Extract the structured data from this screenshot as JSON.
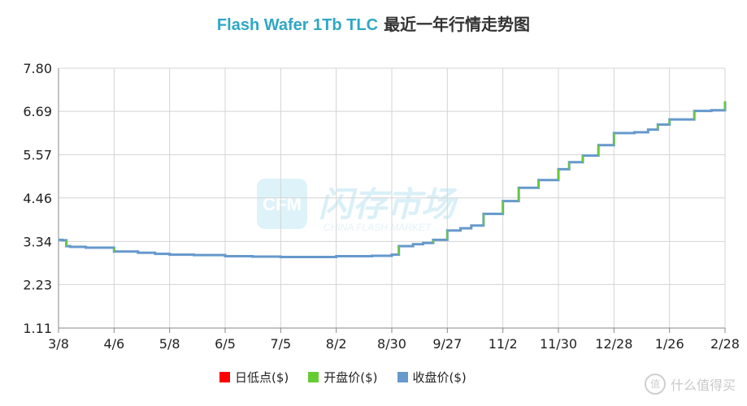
{
  "title": {
    "part1": "Flash Wafer 1Tb TLC",
    "part2": "最近一年行情走势图"
  },
  "watermark": {
    "logo": "CFM",
    "cn": "闪存市场",
    "en": "CHINA FLASH MARKET"
  },
  "brand": {
    "icon": "值",
    "text": "什么值得买"
  },
  "chart_data": {
    "type": "line",
    "title": "Flash Wafer 1Tb TLC 最近一年行情走势图",
    "x_ticks": [
      "3/8",
      "4/6",
      "5/8",
      "6/5",
      "7/5",
      "8/2",
      "8/30",
      "9/27",
      "11/2",
      "11/30",
      "12/28",
      "1/26",
      "2/28"
    ],
    "y_ticks": [
      1.11,
      2.23,
      3.34,
      4.46,
      5.57,
      6.69,
      7.8
    ],
    "ylim": [
      1.11,
      7.8
    ],
    "grid": true,
    "legend_position": "bottom",
    "legend": [
      "日低点($)",
      "开盘价($)",
      "收盘价($)"
    ],
    "colors": {
      "low": "#ff0000",
      "open": "#66cc33",
      "close": "#6699cc"
    },
    "series": [
      {
        "name": "收盘价($)",
        "x": [
          "3/8",
          "3/10",
          "3/12",
          "3/14",
          "3/22",
          "4/6",
          "4/20",
          "4/30",
          "5/8",
          "5/20",
          "6/5",
          "6/20",
          "7/5",
          "7/20",
          "8/2",
          "8/20",
          "8/30",
          "9/3",
          "9/10",
          "9/15",
          "9/20",
          "9/27",
          "10/5",
          "10/12",
          "10/20",
          "11/2",
          "11/10",
          "11/20",
          "11/30",
          "12/5",
          "12/12",
          "12/20",
          "12/28",
          "1/8",
          "1/15",
          "1/20",
          "1/26",
          "2/10",
          "2/20",
          "2/28",
          "3/6"
        ],
        "values": [
          3.38,
          3.37,
          3.22,
          3.2,
          3.18,
          3.08,
          3.05,
          3.02,
          3.0,
          2.99,
          2.96,
          2.95,
          2.94,
          2.94,
          2.96,
          2.97,
          3.0,
          3.22,
          3.27,
          3.3,
          3.38,
          3.62,
          3.68,
          3.75,
          4.05,
          4.38,
          4.72,
          4.92,
          5.2,
          5.38,
          5.55,
          5.82,
          6.13,
          6.15,
          6.22,
          6.35,
          6.48,
          6.7,
          6.72,
          6.95,
          6.95
        ]
      }
    ]
  }
}
